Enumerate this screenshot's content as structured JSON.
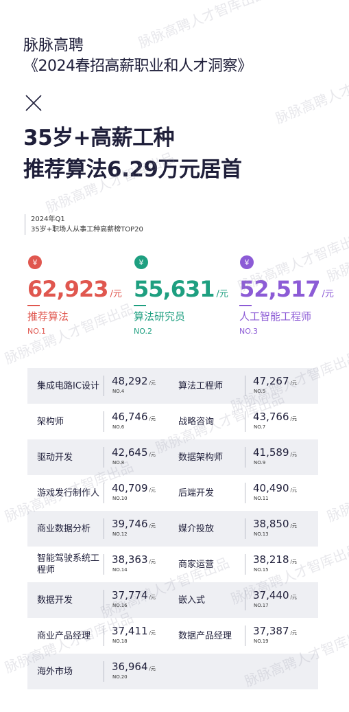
{
  "header": {
    "brand": "脉脉高聘",
    "report_title": "《2024春招高薪职业和人才洞察》",
    "headline_line1": "35岁+高薪工种",
    "headline_line2": "推荐算法6.29万元居首"
  },
  "subtitle": {
    "period": "2024年Q1",
    "description": "35岁+职场人从事工种高薪榜TOP20"
  },
  "top3": [
    {
      "value": "62,923",
      "unit": "/元",
      "title": "推荐算法",
      "rank": "NO.1",
      "color": "#e0574f",
      "icon": "money-bag-icon"
    },
    {
      "value": "55,631",
      "unit": "/元",
      "title": "算法研究员",
      "rank": "NO.2",
      "color": "#1e9f80",
      "icon": "money-bag-icon"
    },
    {
      "value": "52,517",
      "unit": "/元",
      "title": "人工智能工程师",
      "rank": "NO.3",
      "color": "#8c5bd6",
      "icon": "money-bag-icon"
    }
  ],
  "unit_small": "/元",
  "rows": [
    {
      "left": {
        "name": "集成电路IC设计",
        "value": "48,292",
        "rank": "NO.4"
      },
      "right": {
        "name": "算法工程师",
        "value": "47,267",
        "rank": "NO.5"
      }
    },
    {
      "left": {
        "name": "架构师",
        "value": "46,746",
        "rank": "NO.6"
      },
      "right": {
        "name": "战略咨询",
        "value": "43,766",
        "rank": "NO.7"
      }
    },
    {
      "left": {
        "name": "驱动开发",
        "value": "42,645",
        "rank": "NO.8"
      },
      "right": {
        "name": "数据架构师",
        "value": "41,589",
        "rank": "NO.9"
      }
    },
    {
      "left": {
        "name": "游戏发行制作人",
        "value": "40,709",
        "rank": "NO.10"
      },
      "right": {
        "name": "后端开发",
        "value": "40,490",
        "rank": "NO.11"
      }
    },
    {
      "left": {
        "name": "商业数据分析",
        "value": "39,746",
        "rank": "NO.12"
      },
      "right": {
        "name": "媒介投放",
        "value": "38,850",
        "rank": "NO.13"
      }
    },
    {
      "left": {
        "name": "智能驾驶系统工程师",
        "value": "38,363",
        "rank": "NO.14"
      },
      "right": {
        "name": "商家运营",
        "value": "38,218",
        "rank": "NO.15"
      }
    },
    {
      "left": {
        "name": "数据开发",
        "value": "37,774",
        "rank": "NO.16"
      },
      "right": {
        "name": "嵌入式",
        "value": "37,440",
        "rank": "NO.17"
      }
    },
    {
      "left": {
        "name": "商业产品经理",
        "value": "37,411",
        "rank": "NO.18"
      },
      "right": {
        "name": "数据产品经理",
        "value": "37,387",
        "rank": "NO.19"
      }
    },
    {
      "left": {
        "name": "海外市场",
        "value": "36,964",
        "rank": "NO.20"
      },
      "right": null
    }
  ],
  "watermark": "脉脉高聘人才智库出品"
}
